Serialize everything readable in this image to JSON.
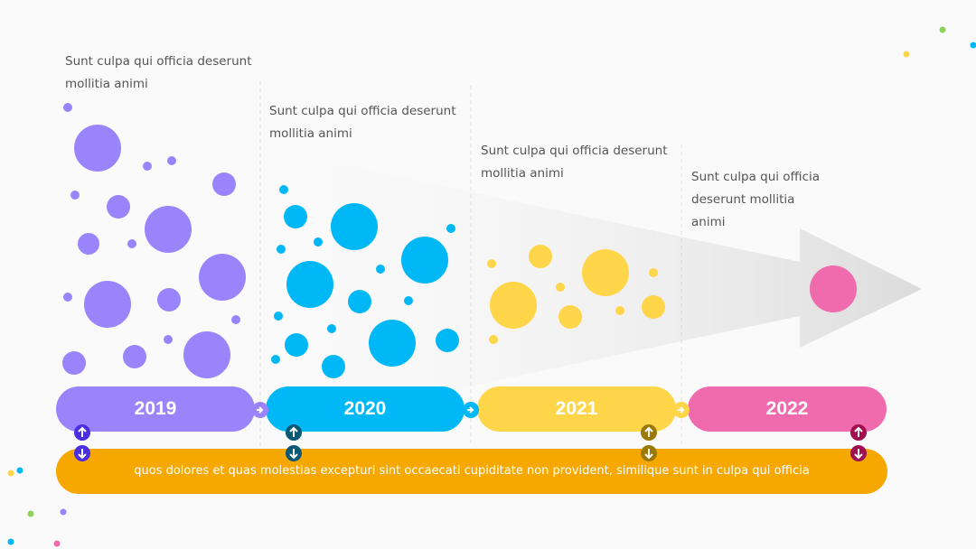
{
  "columns": [
    {
      "year": "2019",
      "text": "Sunt culpa qui officia deserunt mollitia animi"
    },
    {
      "year": "2020",
      "text": "Sunt culpa qui officia deserunt mollitia animi"
    },
    {
      "year": "2021",
      "text": "Sunt culpa qui officia deserunt mollitia animi"
    },
    {
      "year": "2022",
      "text": "Sunt culpa qui officia deserunt mollitia animi"
    }
  ],
  "footer": "quos dolores et quas molestias excepturi sint occaecati cupiditate non provident, similique sunt in culpa qui officia"
}
